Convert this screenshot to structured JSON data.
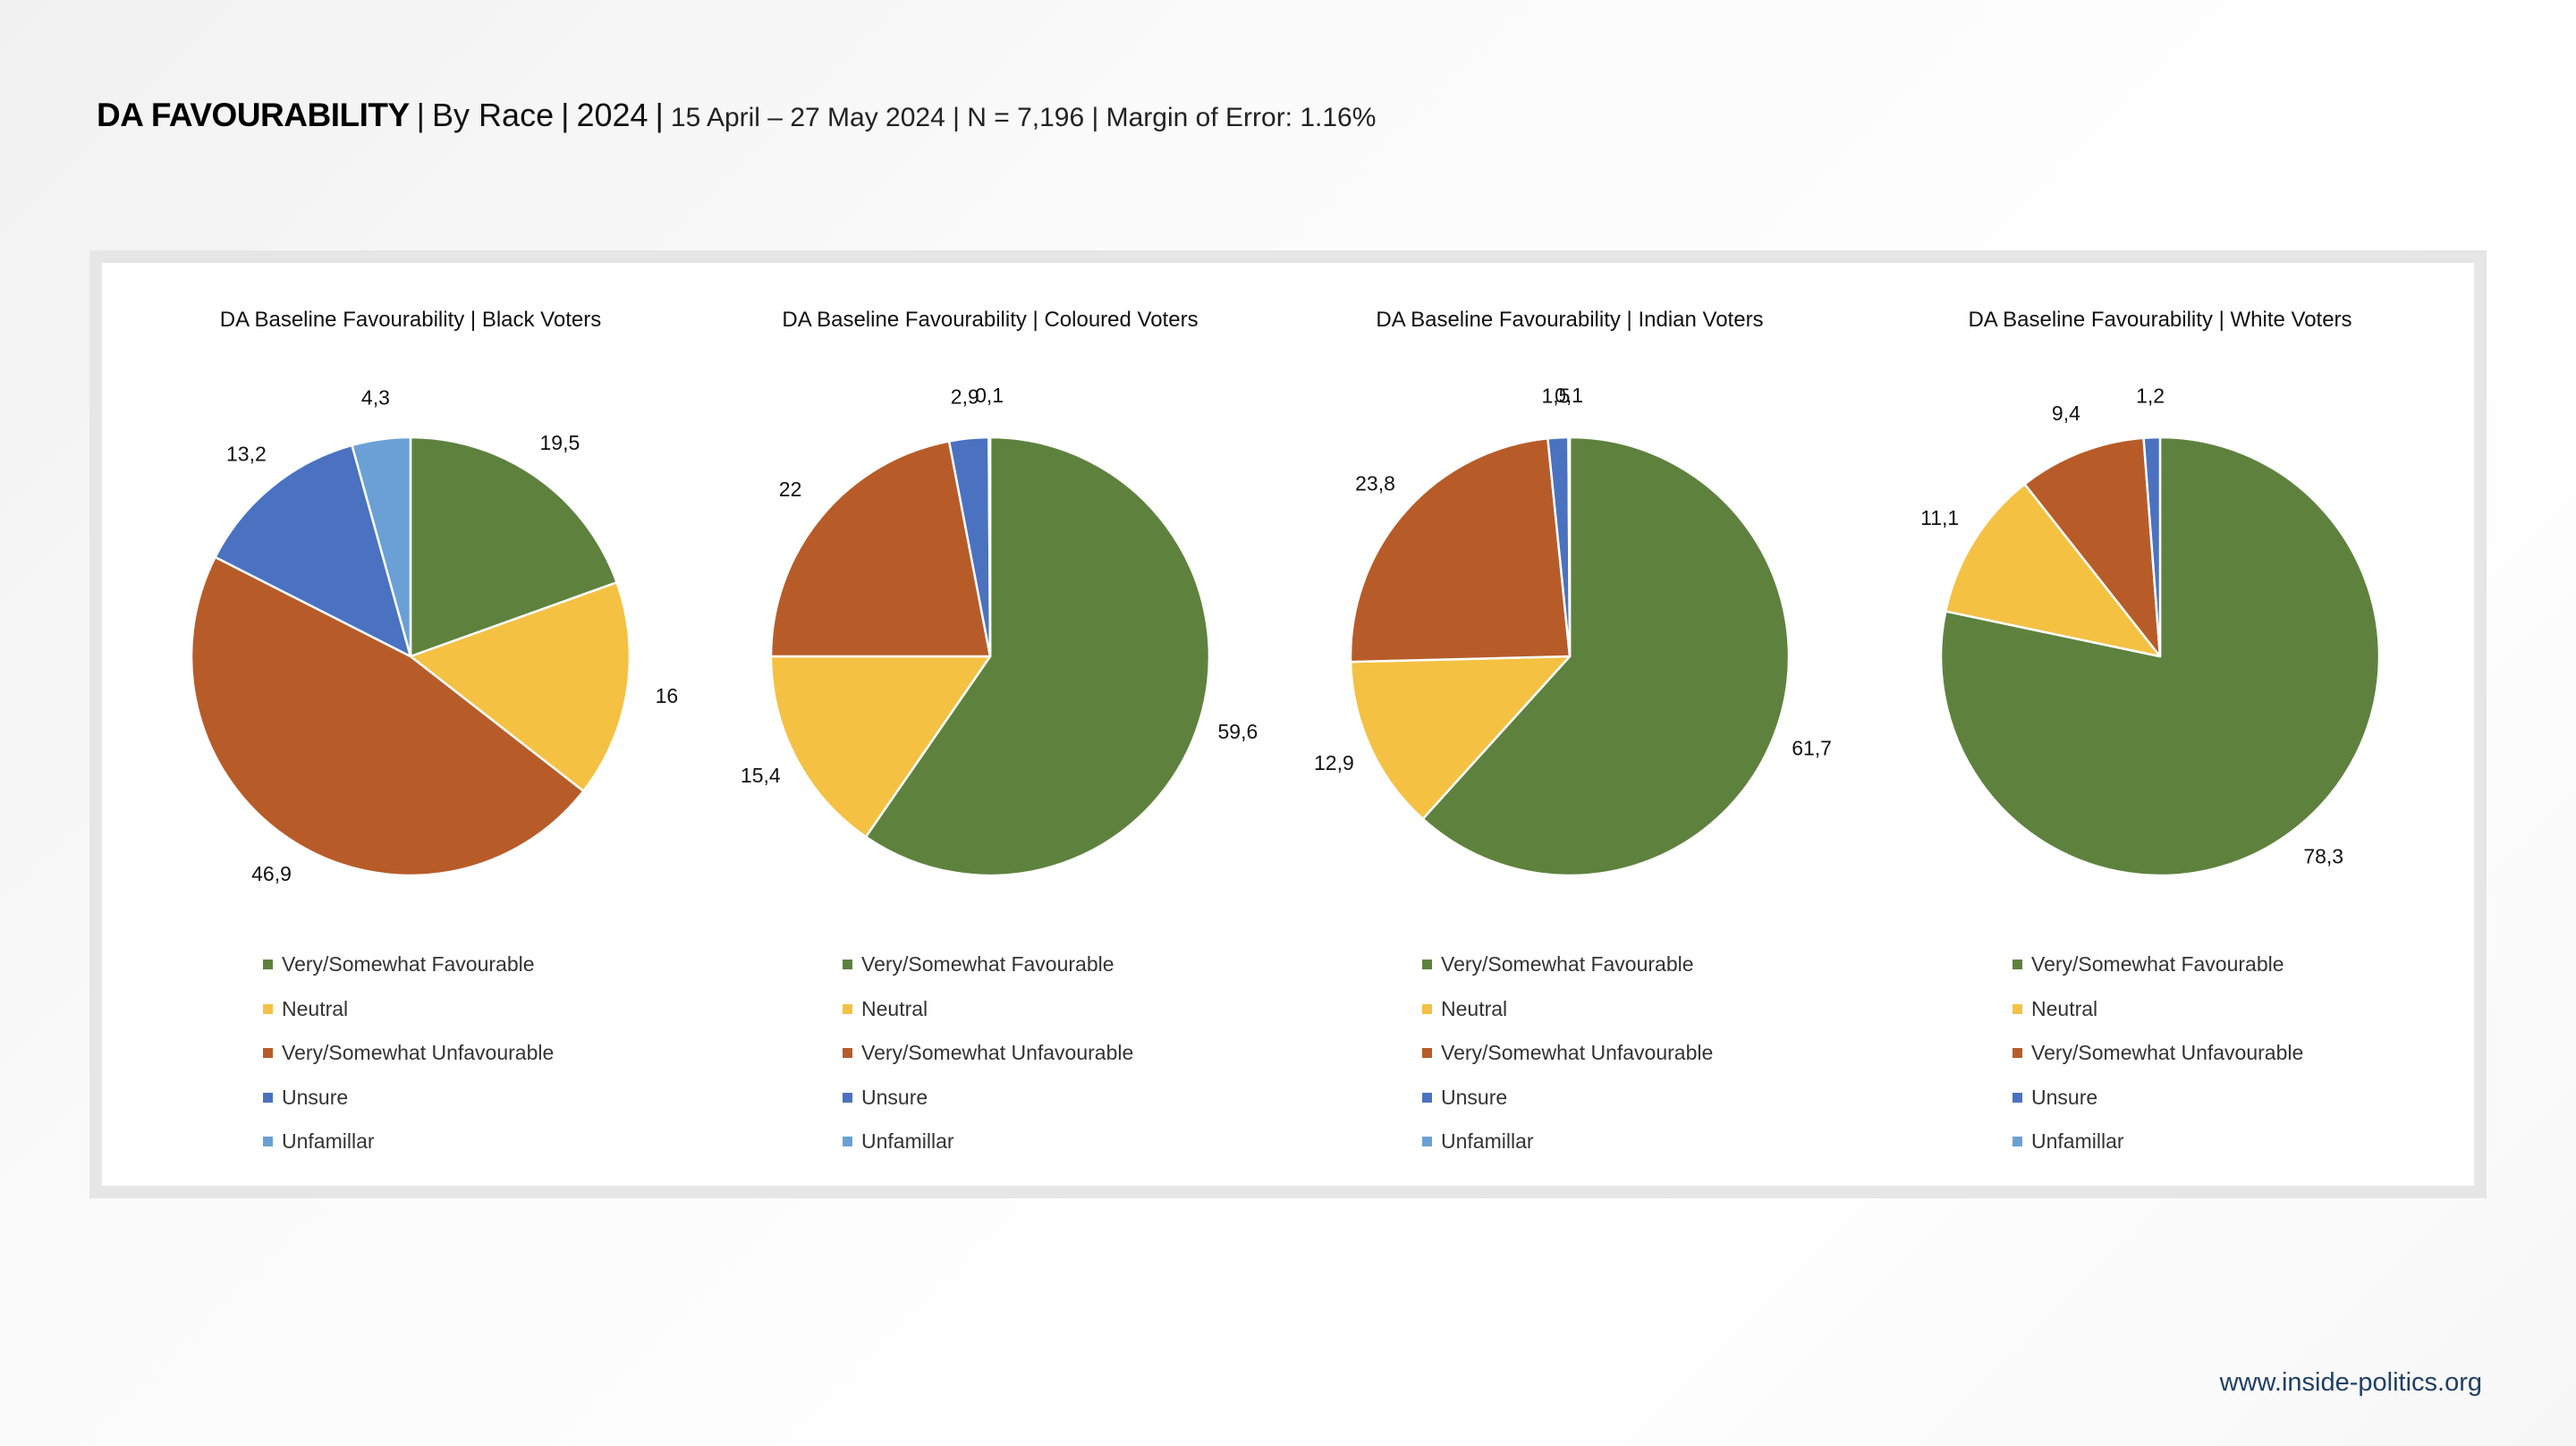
{
  "header": {
    "title": "DA FAVOURABILITY",
    "sep": "|",
    "race": "By Race",
    "year": "2024",
    "subtitle": "15 April – 27 May 2024 | N = 7,196 | Margin of Error: 1.16%"
  },
  "footer": {
    "url": "www.inside-politics.org"
  },
  "colors": {
    "favourable": "#5e823e",
    "neutral": "#f4c143",
    "unfavourable": "#b75c29",
    "unsure": "#4a72c1",
    "unfamiliar": "#6aa0d6"
  },
  "chart_data": [
    {
      "type": "pie",
      "title": "DA Baseline Favourability | Black Voters",
      "labels": [
        "Very/Somewhat Favourable",
        "Neutral",
        "Very/Somewhat Unfavourable",
        "Unsure",
        "Unfamillar"
      ],
      "values": [
        19.5,
        16,
        46.9,
        13.2,
        4.3
      ],
      "value_labels": [
        "19,5",
        "16",
        "46,9",
        "13,2",
        "4,3"
      ]
    },
    {
      "type": "pie",
      "title": "DA Baseline Favourability | Coloured Voters",
      "labels": [
        "Very/Somewhat Favourable",
        "Neutral",
        "Very/Somewhat Unfavourable",
        "Unsure",
        "Unfamillar"
      ],
      "values": [
        59.6,
        15.4,
        22,
        2.9,
        0.1
      ],
      "value_labels": [
        "59,6",
        "15,4",
        "22",
        "2,9",
        "0,1"
      ]
    },
    {
      "type": "pie",
      "title": "DA Baseline Favourability | Indian Voters",
      "labels": [
        "Very/Somewhat Favourable",
        "Neutral",
        "Very/Somewhat Unfavourable",
        "Unsure",
        "Unfamillar"
      ],
      "values": [
        61.7,
        12.9,
        23.8,
        1.5,
        0.1
      ],
      "value_labels": [
        "61,7",
        "12,9",
        "23,8",
        "1,5",
        "0,1"
      ]
    },
    {
      "type": "pie",
      "title": "DA Baseline Favourability | White Voters",
      "labels": [
        "Very/Somewhat Favourable",
        "Neutral",
        "Very/Somewhat Unfavourable",
        "Unsure",
        "Unfamillar"
      ],
      "values": [
        78.3,
        11.1,
        9.4,
        1.2,
        0
      ],
      "value_labels": [
        "78,3",
        "11,1",
        "9,4",
        "1,2",
        ""
      ]
    }
  ]
}
